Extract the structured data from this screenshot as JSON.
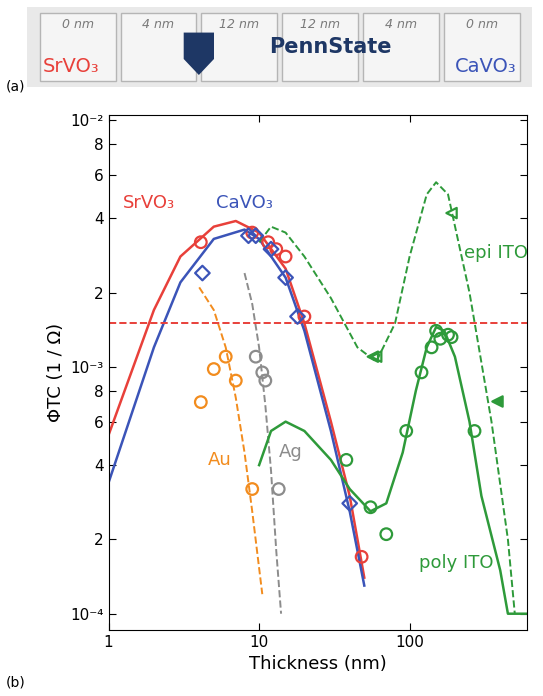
{
  "panel_labels": [
    "(a)",
    "(b)"
  ],
  "photo": {
    "slide_labels": [
      "0 nm",
      "4 nm",
      "12 nm",
      "12 nm",
      "4 nm",
      "0 nm"
    ],
    "material_labels": [
      {
        "text": "SrVO₃",
        "color": "#e8403a"
      },
      {
        "text": "CaVO₃",
        "color": "#3b54b8"
      }
    ],
    "logo_text": "PennState"
  },
  "chart_data": {
    "type": "line",
    "log": true,
    "x_label": "Thickness (nm)",
    "y_label": "ΦTC (1 / Ω)",
    "xlim": [
      1,
      600
    ],
    "ylim": [
      8.6e-05,
      0.0105
    ],
    "xticks": [
      1,
      10,
      100
    ],
    "yticks": [
      {
        "value": 0.0001,
        "label": "10⁻⁴"
      },
      {
        "value": 0.0002,
        "label": "2"
      },
      {
        "value": 0.0004,
        "label": "4"
      },
      {
        "value": 0.0006,
        "label": "6"
      },
      {
        "value": 0.0008,
        "label": "8"
      },
      {
        "value": 0.001,
        "label": "10⁻³"
      },
      {
        "value": 0.002,
        "label": "2"
      },
      {
        "value": 0.004,
        "label": "4"
      },
      {
        "value": 0.006,
        "label": "6"
      },
      {
        "value": 0.008,
        "label": "8"
      },
      {
        "value": 0.01,
        "label": "10⁻²"
      }
    ],
    "series": [
      {
        "type": "scatter",
        "color": "#e8403a",
        "marker": "circle_open",
        "x": [
          4.1,
          9,
          11.5,
          13,
          15,
          20,
          48
        ],
        "values": [
          0.0032,
          0.0035,
          0.0032,
          0.003,
          0.0028,
          0.0016,
          0.00017
        ]
      },
      {
        "name": "SrVO₃",
        "type": "line",
        "color": "#e8403a",
        "line_style": "solid",
        "x": [
          1,
          2,
          3,
          5,
          7,
          10,
          15,
          20,
          30,
          40,
          50
        ],
        "values": [
          0.00053,
          0.0017,
          0.0028,
          0.0037,
          0.0039,
          0.0035,
          0.0025,
          0.0015,
          0.0006,
          0.0003,
          0.00014
        ]
      },
      {
        "type": "scatter",
        "color": "#3b54b8",
        "marker": "diamond_open",
        "x": [
          4.2,
          8.5,
          9.5,
          12,
          15,
          18,
          40
        ],
        "values": [
          0.0024,
          0.0034,
          0.0034,
          0.003,
          0.0023,
          0.0016,
          0.00028
        ]
      },
      {
        "name": "CaVO₃",
        "type": "line",
        "color": "#3b54b8",
        "line_style": "solid",
        "x": [
          1,
          2,
          3,
          5,
          8,
          10,
          15,
          20,
          30,
          40,
          50
        ],
        "values": [
          0.00034,
          0.0012,
          0.0022,
          0.0033,
          0.0036,
          0.0033,
          0.0023,
          0.0014,
          0.00055,
          0.00026,
          0.00013
        ]
      },
      {
        "type": "scatter",
        "color": "#f28c1e",
        "marker": "circle_open",
        "x": [
          4.1,
          5,
          6,
          7,
          9
        ],
        "values": [
          0.00072,
          0.00098,
          0.0011,
          0.00088,
          0.00032
        ]
      },
      {
        "name": "Au",
        "type": "line",
        "color": "#f28c1e",
        "line_style": "dashed",
        "x": [
          4,
          5,
          6,
          7,
          8,
          9,
          10.5
        ],
        "values": [
          0.0021,
          0.0017,
          0.0012,
          0.00075,
          0.00045,
          0.00026,
          0.00012
        ]
      },
      {
        "type": "scatter",
        "color": "#8c8c8c",
        "marker": "circle_open",
        "x": [
          9.5,
          10.5,
          11,
          13.5
        ],
        "values": [
          0.0011,
          0.00095,
          0.00088,
          0.00032
        ]
      },
      {
        "name": "Ag",
        "type": "line",
        "color": "#8c8c8c",
        "line_style": "dashed",
        "x": [
          8,
          9,
          10,
          11,
          12,
          13,
          14
        ],
        "values": [
          0.0024,
          0.0018,
          0.0012,
          0.0007,
          0.00038,
          0.00018,
          0.0001
        ]
      },
      {
        "type": "scatter",
        "color": "#2e9a3a",
        "marker": "circle_open",
        "x": [
          38,
          55,
          70,
          95,
          120,
          140,
          150,
          160,
          180,
          190,
          270
        ],
        "values": [
          0.00042,
          0.00027,
          0.00021,
          0.00055,
          0.00095,
          0.0012,
          0.0014,
          0.0013,
          0.00135,
          0.00132,
          0.00055
        ]
      },
      {
        "name": "poly ITO",
        "type": "line",
        "color": "#2e9a3a",
        "line_style": "solid",
        "x": [
          10,
          12,
          15,
          20,
          30,
          40,
          55,
          70,
          90,
          110,
          130,
          150,
          170,
          200,
          250,
          300,
          400,
          450,
          600
        ],
        "values": [
          0.0004,
          0.00055,
          0.0006,
          0.00055,
          0.00042,
          0.00032,
          0.00026,
          0.00028,
          0.00045,
          0.0008,
          0.0012,
          0.00145,
          0.0014,
          0.0011,
          0.0006,
          0.0003,
          0.00015,
          0.0001,
          0.0001
        ]
      },
      {
        "name": "epi ITO",
        "type": "line",
        "color": "#2e9a3a",
        "line_style": "dashed",
        "x": [
          10,
          12,
          15,
          20,
          30,
          45,
          60,
          80,
          100,
          130,
          150,
          180,
          250,
          350,
          450,
          500
        ],
        "values": [
          0.0032,
          0.0037,
          0.0035,
          0.0028,
          0.0019,
          0.0012,
          0.00105,
          0.0015,
          0.0028,
          0.005,
          0.0056,
          0.005,
          0.002,
          0.0006,
          0.0002,
          0.0001
        ]
      },
      {
        "type": "scatter",
        "color": "#2e9a3a",
        "marker": "triangle_left_open",
        "x": [
          57,
          60,
          190
        ],
        "values": [
          0.0011,
          0.0011,
          0.0042
        ]
      },
      {
        "type": "scatter",
        "color": "#2e9a3a",
        "marker": "triangle_left_filled",
        "x": [
          380
        ],
        "values": [
          0.00073
        ]
      },
      {
        "type": "line",
        "color": "#e8403a",
        "line_style": "dashed",
        "x": [
          1,
          600
        ],
        "values": [
          0.0015,
          0.0015
        ]
      }
    ]
  }
}
